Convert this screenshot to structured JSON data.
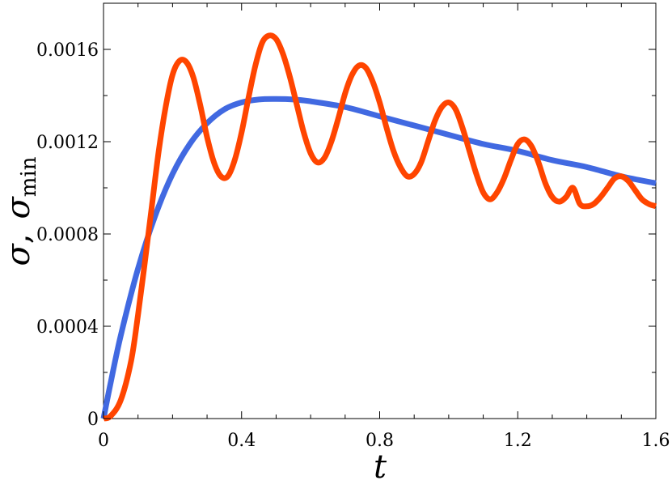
{
  "chart_data": {
    "type": "line",
    "title": "",
    "xlabel": "t",
    "ylabel": "σ, σ_min",
    "ylabel_parts": {
      "sym1": "σ",
      "sep": ",",
      "sym2": "σ",
      "sub": "min"
    },
    "xlim": [
      0,
      1.6
    ],
    "ylim": [
      0,
      0.0018
    ],
    "x_ticks": [
      0,
      0.4,
      0.8,
      1.2,
      1.6
    ],
    "x_tick_labels": [
      "0",
      "0.4",
      "0.8",
      "1.2",
      "1.6"
    ],
    "y_ticks": [
      0,
      0.0004,
      0.0008,
      0.0012,
      0.0016
    ],
    "y_tick_labels": [
      "0",
      "0.0004",
      "0.0008",
      "0.0012",
      "0.0016"
    ],
    "grid": false,
    "legend": "none",
    "series": [
      {
        "color": "#4169E1",
        "x": [
          0,
          0.02,
          0.05,
          0.1,
          0.15,
          0.2,
          0.25,
          0.3,
          0.35,
          0.4,
          0.45,
          0.5,
          0.55,
          0.6,
          0.7,
          0.8,
          0.9,
          1.0,
          1.1,
          1.2,
          1.3,
          1.4,
          1.5,
          1.6
        ],
        "y": [
          0,
          0.00015,
          0.00036,
          0.00065,
          0.00088,
          0.00106,
          0.00119,
          0.00128,
          0.00134,
          0.00137,
          0.001383,
          0.001385,
          0.001383,
          0.001375,
          0.00135,
          0.00131,
          0.00127,
          0.00123,
          0.00119,
          0.00116,
          0.00112,
          0.00109,
          0.00105,
          0.00102
        ]
      },
      {
        "color": "#FF4500",
        "x": [
          0,
          0.02,
          0.05,
          0.08,
          0.1,
          0.12,
          0.14,
          0.16,
          0.18,
          0.2,
          0.22,
          0.24,
          0.26,
          0.28,
          0.3,
          0.32,
          0.34,
          0.36,
          0.38,
          0.4,
          0.42,
          0.44,
          0.46,
          0.48,
          0.5,
          0.52,
          0.54,
          0.56,
          0.58,
          0.6,
          0.62,
          0.64,
          0.66,
          0.68,
          0.7,
          0.72,
          0.74,
          0.76,
          0.78,
          0.8,
          0.82,
          0.84,
          0.86,
          0.88,
          0.9,
          0.92,
          0.94,
          0.96,
          0.98,
          1.0,
          1.02,
          1.04,
          1.06,
          1.08,
          1.1,
          1.12,
          1.14,
          1.16,
          1.18,
          1.2,
          1.22,
          1.24,
          1.26,
          1.28,
          1.3,
          1.32,
          1.34,
          1.36,
          1.38,
          1.4,
          1.42,
          1.44,
          1.46,
          1.48,
          1.5,
          1.52,
          1.54,
          1.56,
          1.58,
          1.6
        ],
        "y": [
          0,
          1e-05,
          8e-05,
          0.00025,
          0.00045,
          0.00068,
          0.00092,
          0.00116,
          0.00135,
          0.00149,
          0.00155,
          0.001545,
          0.00148,
          0.00136,
          0.00122,
          0.00111,
          0.00105,
          0.00105,
          0.00112,
          0.00124,
          0.00139,
          0.00153,
          0.00163,
          0.00166,
          0.001645,
          0.00158,
          0.00148,
          0.00136,
          0.00124,
          0.00115,
          0.00111,
          0.00113,
          0.0012,
          0.0013,
          0.00141,
          0.00149,
          0.00153,
          0.00152,
          0.00146,
          0.00137,
          0.00126,
          0.00116,
          0.00109,
          0.00105,
          0.00106,
          0.00111,
          0.0012,
          0.00129,
          0.00135,
          0.00137,
          0.00134,
          0.00126,
          0.00116,
          0.00106,
          0.00098,
          0.00095,
          0.00098,
          0.00104,
          0.00112,
          0.00119,
          0.00121,
          0.00118,
          0.00111,
          0.00102,
          0.00096,
          0.00094,
          0.00096,
          0.001,
          0.00093,
          0.00092,
          0.00093,
          0.00096,
          0.001,
          0.00104,
          0.00105,
          0.00103,
          0.00099,
          0.00095,
          0.00093,
          0.00092
        ]
      }
    ]
  }
}
